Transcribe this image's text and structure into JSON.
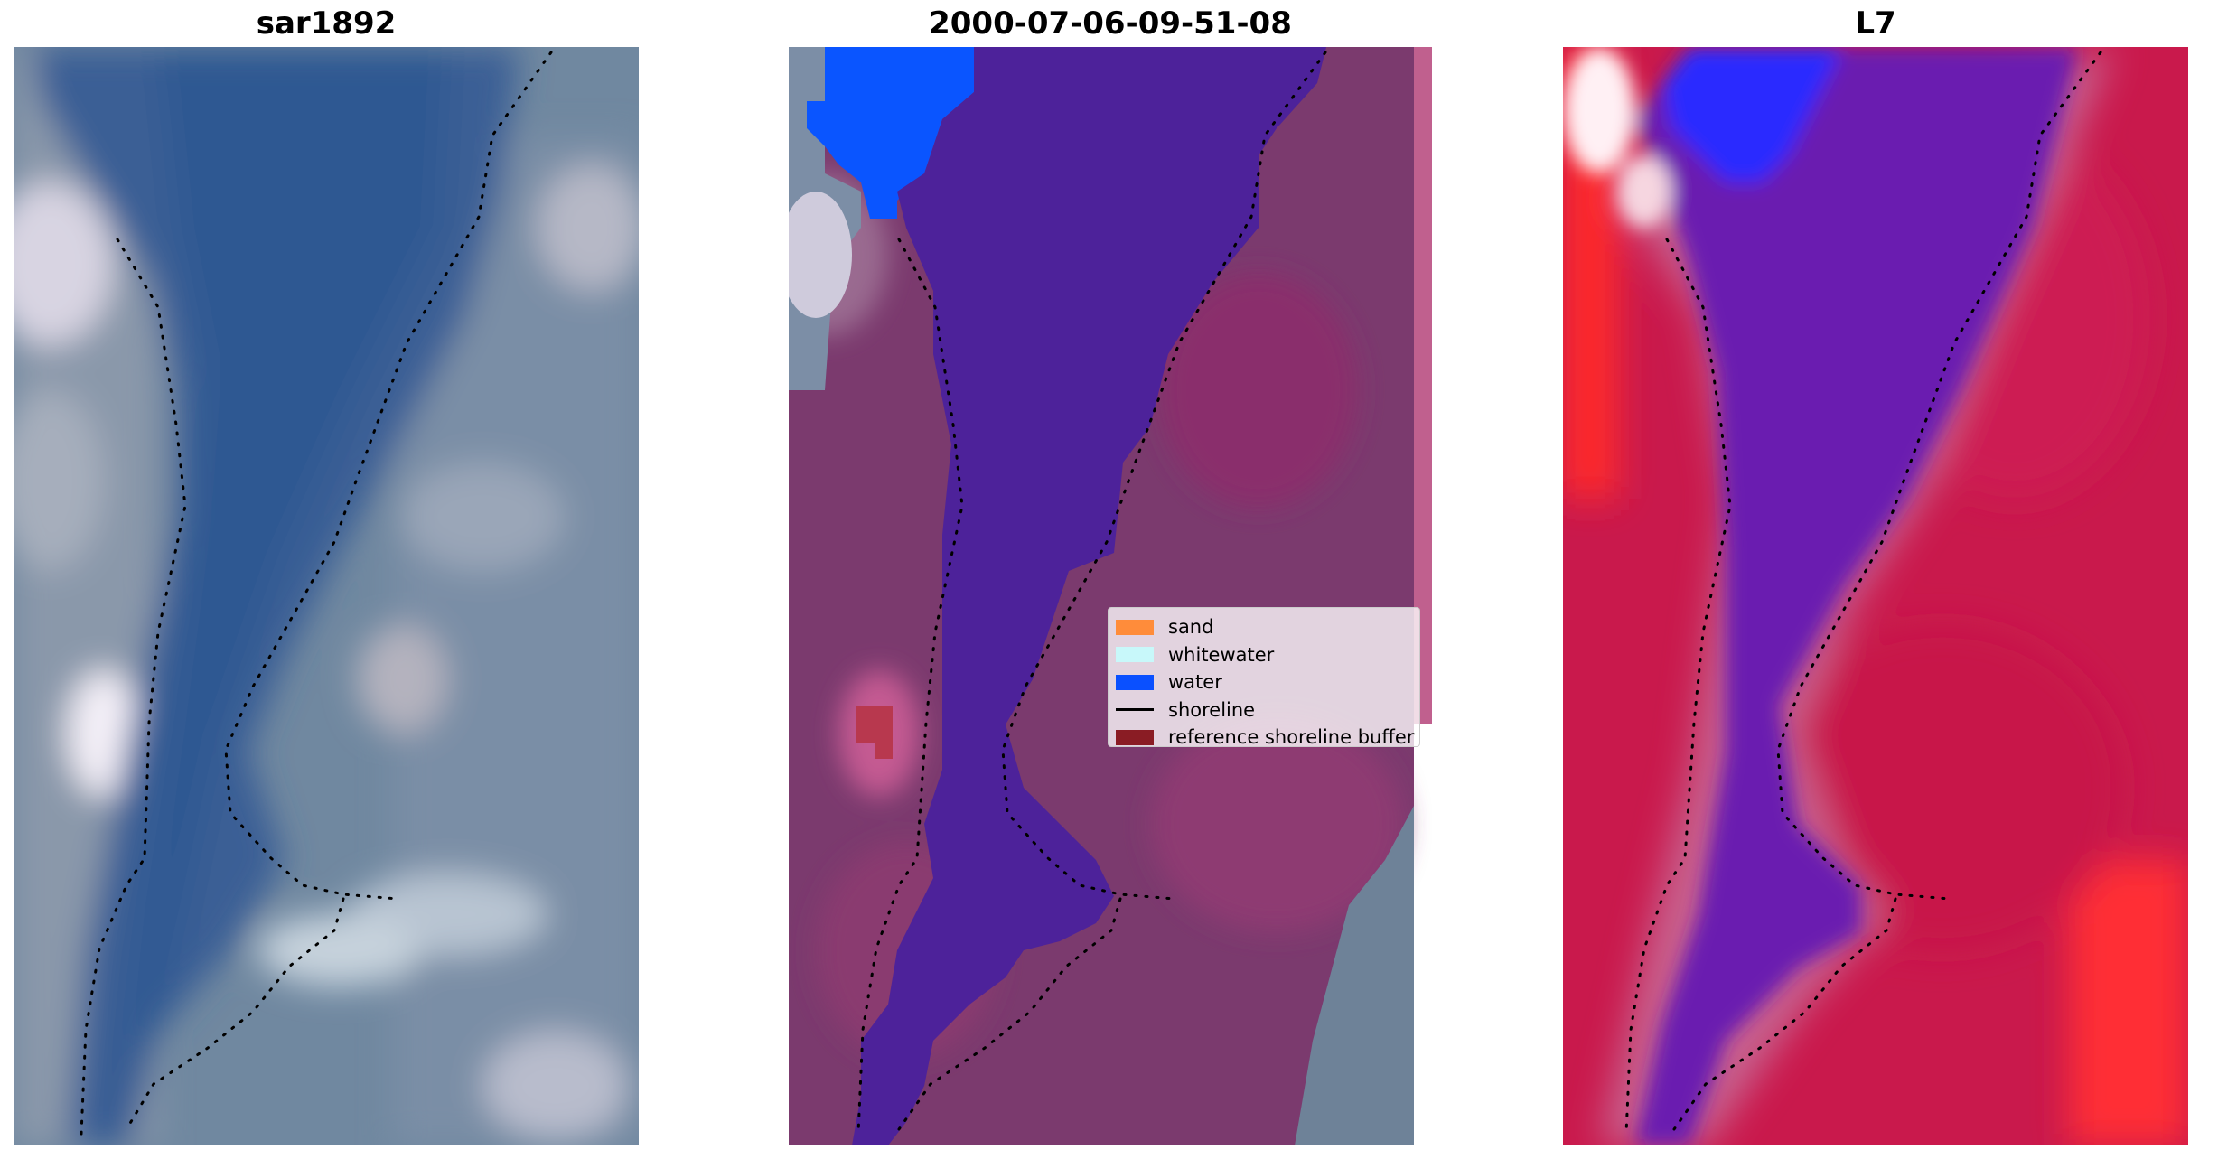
{
  "panels": [
    {
      "title": "sar1892"
    },
    {
      "title": "2000-07-06-09-51-08"
    },
    {
      "title": "L7"
    }
  ],
  "legend": {
    "items": [
      {
        "label": "sand",
        "color": "#ff8c3a",
        "kind": "patch"
      },
      {
        "label": "whitewater",
        "color": "#c8f8fa",
        "kind": "patch"
      },
      {
        "label": "water",
        "color": "#0a50ff",
        "kind": "patch"
      },
      {
        "label": "shoreline",
        "color": "#000000",
        "kind": "line"
      },
      {
        "label": "reference shoreline buffer",
        "color": "#8a1c24",
        "kind": "patch"
      }
    ]
  },
  "colors": {
    "rgb_water": "#3b5f93",
    "rgb_land": "#6a8098",
    "class_water": "#4b229a",
    "class_land": "#8c3468",
    "index_water": "#6e14b0",
    "index_land": "#c8194a",
    "index_bright": "#ff2a2a"
  }
}
